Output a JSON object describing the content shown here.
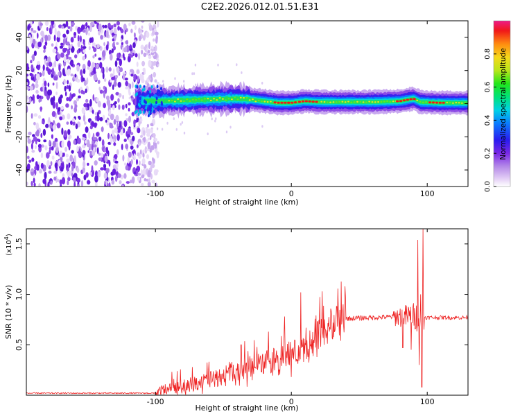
{
  "title": "C2E2.2026.012.01.51.E31",
  "colors": {
    "snr_line": "#ee2222",
    "axis": "#000000"
  },
  "chart_data": [
    {
      "type": "heatmap",
      "xlabel": "Height of straight line (km)",
      "ylabel": "Frequency (Hz)",
      "xlim": [
        -195,
        130
      ],
      "ylim": [
        -50,
        50
      ],
      "x_ticks": [
        -100,
        0,
        100
      ],
      "x_tick_labels": [
        "-100",
        "0",
        "100"
      ],
      "y_ticks": [
        -40,
        -20,
        0,
        20,
        40
      ],
      "y_tick_labels": [
        "-40",
        "-20",
        "0",
        "20",
        "40"
      ],
      "colorbar": {
        "label": "Normalized spectral amplitude",
        "range": [
          0,
          1
        ],
        "ticks": [
          0.0,
          0.2,
          0.4,
          0.6,
          0.8
        ],
        "tick_labels": [
          "0.0",
          "0.2",
          "0.4",
          "0.6",
          "0.8"
        ]
      },
      "noise_region_x": [
        -195,
        -102
      ],
      "signal_onset_x": -115,
      "center_line": [
        [
          -115,
          2
        ],
        [
          -100,
          1.5
        ],
        [
          -80,
          2
        ],
        [
          -60,
          2.5
        ],
        [
          -40,
          3
        ],
        [
          -30,
          2.5
        ],
        [
          -20,
          1.5
        ],
        [
          -10,
          0.5
        ],
        [
          0,
          0.5
        ],
        [
          10,
          1.5
        ],
        [
          20,
          1
        ],
        [
          40,
          1
        ],
        [
          60,
          1
        ],
        [
          80,
          1.5
        ],
        [
          90,
          3
        ],
        [
          95,
          1
        ],
        [
          110,
          0.5
        ],
        [
          130,
          0.5
        ]
      ],
      "peak_segments": [
        [
          -12,
          -1
        ],
        [
          -2,
          4
        ],
        [
          6,
          20
        ],
        [
          78,
          92
        ],
        [
          102,
          114
        ]
      ]
    },
    {
      "type": "line",
      "xlabel": "Height of straight line (km)",
      "ylabel": "SNR (10 * v/v)",
      "y_scale_label": "(x10",
      "y_scale_exponent": "4",
      "y_scale_close": ")",
      "xlim": [
        -195,
        130
      ],
      "ylim": [
        0,
        1.65
      ],
      "x_ticks": [
        -100,
        0,
        100
      ],
      "x_tick_labels": [
        "-100",
        "0",
        "100"
      ],
      "y_ticks": [
        0.5,
        1.0,
        1.5
      ],
      "y_tick_labels": [
        "0.5",
        "1.0",
        "1.5"
      ],
      "series": [
        {
          "name": "SNR",
          "envelope": [
            [
              -195,
              0.02
            ],
            [
              -100,
              0.02
            ],
            [
              -90,
              0.07
            ],
            [
              -80,
              0.09
            ],
            [
              -60,
              0.15
            ],
            [
              -40,
              0.24
            ],
            [
              -20,
              0.33
            ],
            [
              0,
              0.41
            ],
            [
              10,
              0.45
            ],
            [
              20,
              0.6
            ],
            [
              30,
              0.72
            ],
            [
              40,
              0.76
            ],
            [
              60,
              0.77
            ],
            [
              80,
              0.78
            ],
            [
              95,
              0.78
            ],
            [
              100,
              0.77
            ],
            [
              130,
              0.77
            ]
          ],
          "spikes": [
            [
              -37,
              0.5
            ],
            [
              -17,
              0.63
            ],
            [
              -5,
              0.78
            ],
            [
              7,
              1.02
            ],
            [
              82,
              0.95
            ],
            [
              88,
              1.12
            ],
            [
              93,
              1.54
            ],
            [
              95,
              1.0
            ],
            [
              96,
              1.1
            ],
            [
              97,
              1.65
            ]
          ],
          "dips": [
            [
              9,
              0.33
            ],
            [
              82,
              0.47
            ],
            [
              88,
              0.45
            ],
            [
              94,
              0.3
            ],
            [
              96,
              0.08
            ]
          ]
        }
      ]
    }
  ]
}
